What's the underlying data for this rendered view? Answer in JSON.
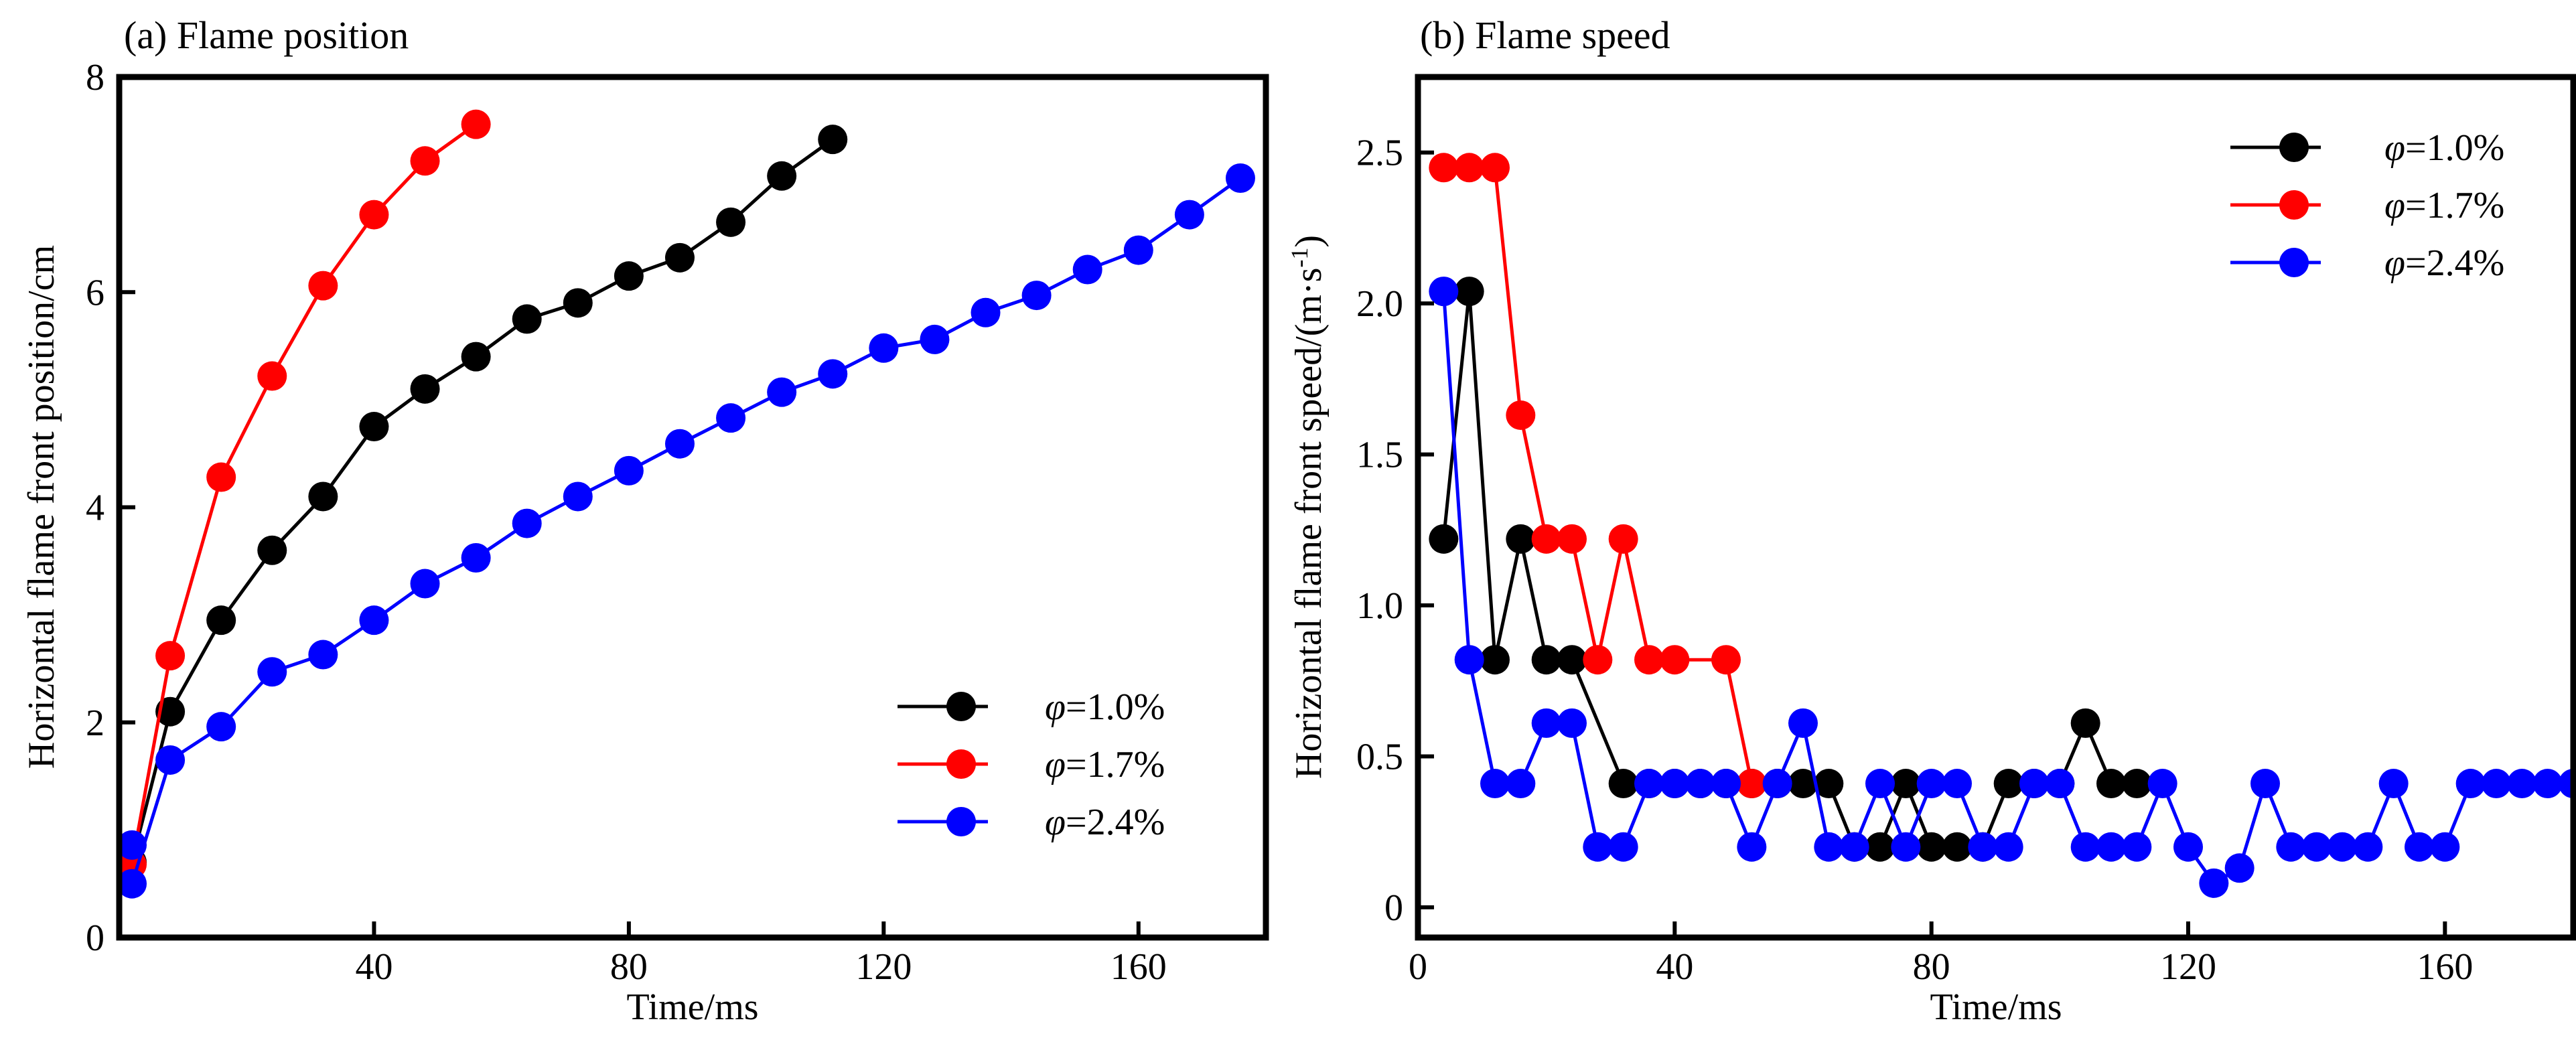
{
  "chart_data": [
    {
      "type": "line",
      "title": "(a) Flame position",
      "xlabel": "Time/ms",
      "ylabel": "Horizontal flame front position/cm",
      "xlim": [
        0,
        180
      ],
      "ylim": [
        0,
        8
      ],
      "xticks": [
        40,
        80,
        120,
        160
      ],
      "yticks": [
        0,
        2,
        4,
        6,
        8
      ],
      "legend_position": "bottom-right",
      "grid": false,
      "series": [
        {
          "name": "φ=1.0%",
          "color": "#000000",
          "x": [
            2,
            8,
            16,
            24,
            32,
            40,
            48,
            56,
            64,
            72,
            80,
            88,
            96,
            104,
            112
          ],
          "y": [
            0.7,
            2.1,
            2.95,
            3.6,
            4.1,
            4.75,
            5.1,
            5.4,
            5.75,
            5.9,
            6.15,
            6.32,
            6.65,
            7.08,
            7.42
          ]
        },
        {
          "name": "φ=1.7%",
          "color": "#ff0000",
          "x": [
            2,
            8,
            16,
            24,
            32,
            40,
            48,
            56
          ],
          "y": [
            0.68,
            2.62,
            4.28,
            5.22,
            6.06,
            6.72,
            7.22,
            7.56
          ]
        },
        {
          "name": "φ=2.4%",
          "color": "#0000ff",
          "x": [
            2,
            8,
            16,
            24,
            32,
            40,
            48,
            56,
            64,
            72,
            80,
            88,
            96,
            104,
            112,
            120,
            128,
            136,
            144,
            152,
            160,
            168,
            176
          ],
          "y": [
            0.5,
            1.65,
            1.96,
            2.47,
            2.63,
            2.95,
            3.29,
            3.53,
            3.85,
            4.1,
            4.34,
            4.59,
            4.83,
            5.07,
            5.24,
            5.48,
            5.56,
            5.81,
            5.97,
            6.21,
            6.39,
            6.72,
            7.06
          ]
        }
      ],
      "extra_points": [
        {
          "series": "φ=2.4%",
          "x": 2,
          "y": 0.86
        }
      ]
    },
    {
      "type": "line",
      "title": "(b) Flame speed",
      "xlabel": "Time/ms",
      "ylabel": "Horizontal flame front speed/(m·s",
      "ylabel_sup": "-1",
      "ylabel_end": ")",
      "xlim": [
        0,
        180
      ],
      "ylim": [
        -0.1,
        2.75
      ],
      "xticks": [
        0,
        40,
        80,
        120,
        160
      ],
      "yticks": [
        0,
        0.5,
        1.0,
        1.5,
        2.0,
        2.5
      ],
      "ytick_labels": [
        "0",
        "0.5",
        "1.0",
        "1.5",
        "2.0",
        "2.5"
      ],
      "legend_position": "top-right",
      "grid": false,
      "series": [
        {
          "name": "φ=1.0%",
          "color": "#000000",
          "x": [
            4,
            8,
            12,
            16,
            20,
            24,
            32,
            36,
            40,
            44,
            48,
            52,
            56,
            60,
            64,
            68,
            72,
            76,
            80,
            84,
            88,
            92,
            96,
            100,
            104,
            108,
            112
          ],
          "y": [
            1.22,
            2.04,
            0.82,
            1.22,
            0.82,
            0.82,
            0.41,
            0.41,
            0.41,
            0.41,
            0.41,
            0.41,
            0.41,
            0.41,
            0.41,
            0.2,
            0.2,
            0.41,
            0.2,
            0.2,
            0.2,
            0.41,
            0.41,
            0.41,
            0.61,
            0.41,
            0.41
          ]
        },
        {
          "name": "φ=1.7%",
          "color": "#ff0000",
          "x": [
            4,
            8,
            12,
            16,
            20,
            24,
            28,
            32,
            36,
            40,
            48,
            52
          ],
          "y": [
            2.45,
            2.45,
            2.45,
            1.63,
            1.22,
            1.22,
            0.82,
            1.22,
            0.82,
            0.82,
            0.82,
            0.41
          ]
        },
        {
          "name": "φ=2.4%",
          "color": "#0000ff",
          "x": [
            4,
            8,
            12,
            16,
            20,
            24,
            28,
            32,
            36,
            40,
            44,
            48,
            52,
            56,
            60,
            64,
            68,
            72,
            76,
            80,
            84,
            88,
            92,
            96,
            100,
            104,
            108,
            112,
            116,
            120,
            124,
            128,
            132,
            136,
            140,
            144,
            148,
            152,
            156,
            160,
            164,
            168,
            172,
            176,
            180
          ],
          "y": [
            2.04,
            0.82,
            0.41,
            0.41,
            0.61,
            0.61,
            0.2,
            0.2,
            0.41,
            0.41,
            0.41,
            0.41,
            0.2,
            0.41,
            0.61,
            0.2,
            0.2,
            0.41,
            0.2,
            0.41,
            0.41,
            0.2,
            0.2,
            0.41,
            0.41,
            0.2,
            0.2,
            0.2,
            0.41,
            0.2,
            0.08,
            0.13,
            0.41,
            0.2,
            0.2,
            0.2,
            0.2,
            0.41,
            0.2,
            0.2,
            0.41,
            0.41,
            0.41,
            0.41,
            0.41
          ]
        }
      ]
    }
  ]
}
